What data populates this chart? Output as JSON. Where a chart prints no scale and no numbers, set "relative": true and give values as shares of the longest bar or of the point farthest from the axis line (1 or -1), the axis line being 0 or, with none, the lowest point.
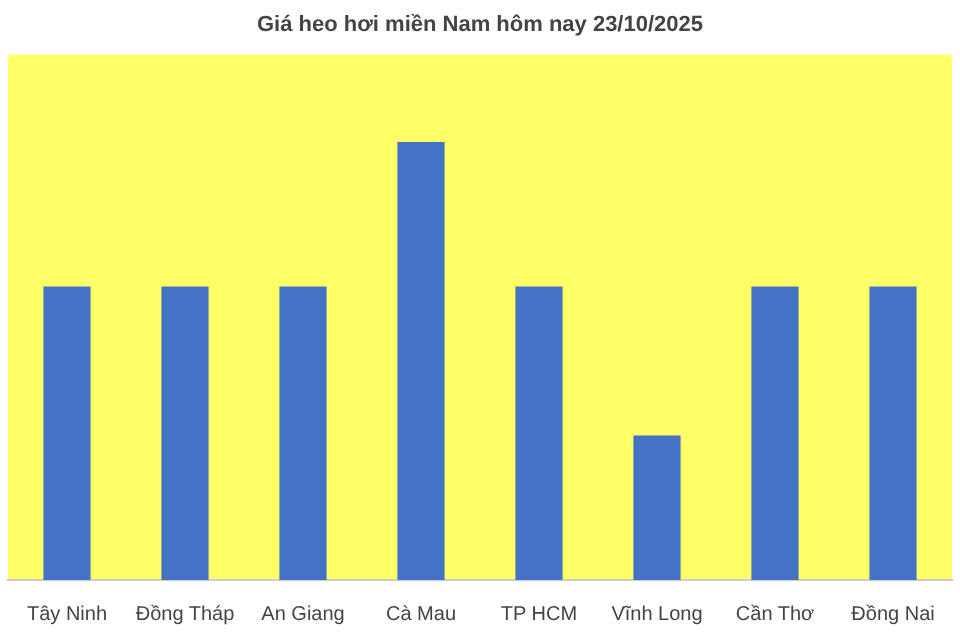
{
  "chart_data": {
    "type": "bar",
    "title": "Giá heo hơi miền Nam hôm nay 23/10/2025",
    "relative": true,
    "categories": [
      "Tây Ninh",
      "Đồng Tháp",
      "An Giang",
      "Cà Mau",
      "TP HCM",
      "Vĩnh Long",
      "Cần Thơ",
      "Đồng Nai"
    ],
    "values": [
      0.67,
      0.67,
      0.67,
      1,
      0.67,
      0.33,
      0.67,
      0.67
    ],
    "color": "#4472c4"
  }
}
